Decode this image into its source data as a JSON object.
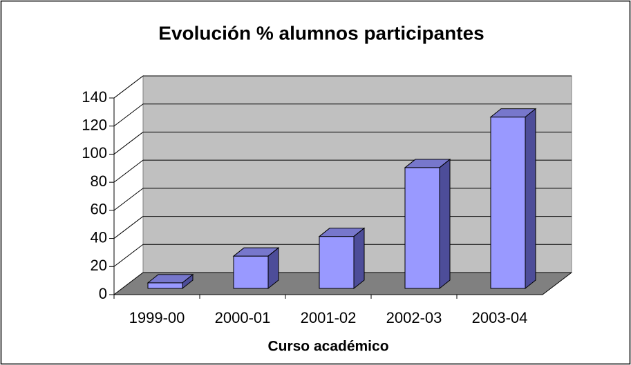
{
  "chart_data": {
    "type": "bar3d",
    "title": "Evolución % alumnos participantes",
    "x_label": "Curso académico",
    "categories": [
      "1999-00",
      "2000-01",
      "2001-02",
      "2002-03",
      "2003-04"
    ],
    "values": [
      4,
      23,
      37,
      86,
      122
    ],
    "color": "#9999ff",
    "ylim": [
      0,
      140
    ],
    "yticks": [
      0,
      20,
      40,
      60,
      80,
      100,
      120,
      140
    ],
    "grid": true
  }
}
